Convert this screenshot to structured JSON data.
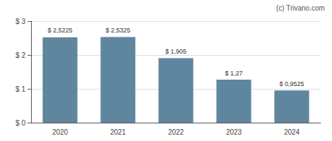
{
  "chart_data": {
    "type": "bar",
    "categories": [
      "2020",
      "2021",
      "2022",
      "2023",
      "2024"
    ],
    "values": [
      2.5225,
      2.5325,
      1.905,
      1.27,
      0.9525
    ],
    "value_labels": [
      "$ 2,5225",
      "$ 2,5325",
      "$ 1,905",
      "$ 1,27",
      "$ 0,9525"
    ],
    "data_labels": true,
    "color": "#5f869f",
    "ylim": [
      0,
      3.0
    ],
    "yticks": [
      {
        "value": 0,
        "label": "$ 0"
      },
      {
        "value": 1,
        "label": "$ 1"
      },
      {
        "value": 2,
        "label": "$ 2"
      },
      {
        "value": 3,
        "label": "$ 3"
      }
    ],
    "grid": true,
    "annotation": "(c) Trivano.com"
  }
}
